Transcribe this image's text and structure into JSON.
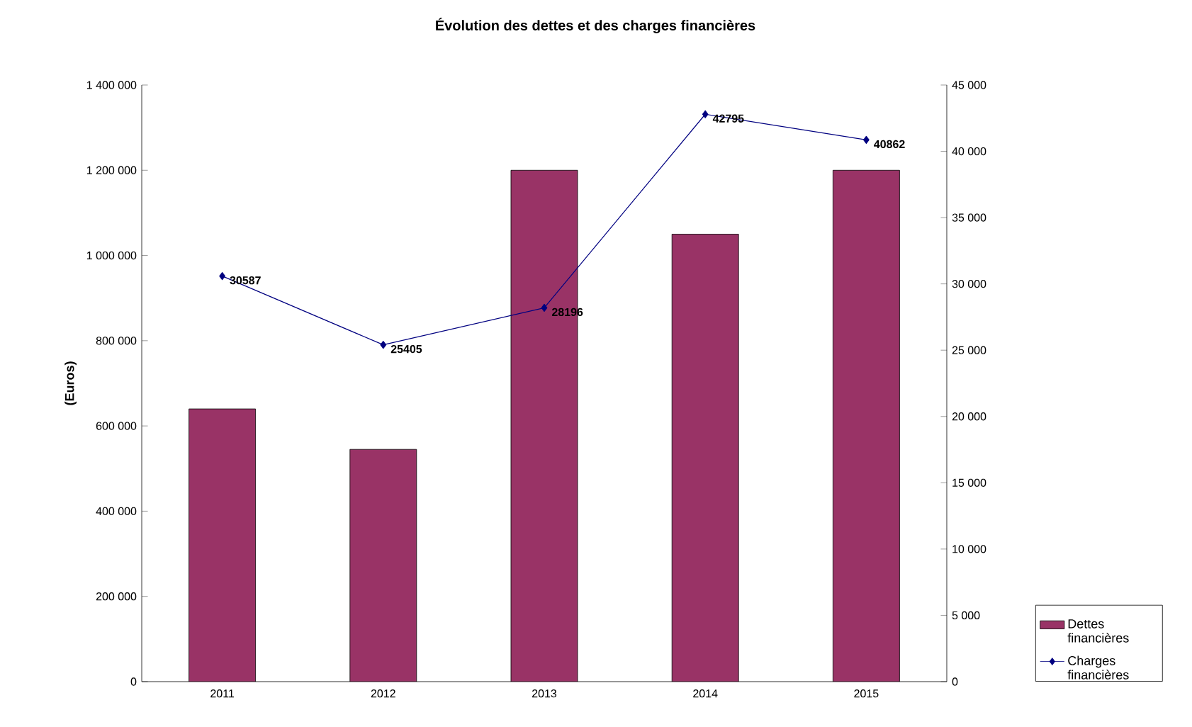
{
  "chart_data": {
    "type": "bar",
    "title": "Évolution des dettes et des charges financières",
    "ylabel": "(Euros)",
    "categories": [
      "2011",
      "2012",
      "2013",
      "2014",
      "2015"
    ],
    "series": [
      {
        "name": "Dettes financières",
        "color": "#993366",
        "values": [
          640000,
          545000,
          1200000,
          1050000,
          1200000
        ]
      },
      {
        "name": "Charges financières",
        "type": "line",
        "axis": "y2",
        "color": "#000080",
        "marker": "diamond",
        "values": [
          30587,
          25405,
          28196,
          42795,
          40862
        ],
        "value_labels": [
          "30587",
          "25405",
          "28196",
          "42795",
          "40862"
        ]
      }
    ],
    "ylim": [
      0,
      1400000
    ],
    "yticks": [
      {
        "value": 0,
        "label": "0"
      },
      {
        "value": 200000,
        "label": "200 000"
      },
      {
        "value": 400000,
        "label": "400 000"
      },
      {
        "value": 600000,
        "label": "600 000"
      },
      {
        "value": 800000,
        "label": "800 000"
      },
      {
        "value": 1000000,
        "label": "1 000 000"
      },
      {
        "value": 1200000,
        "label": "1 200 000"
      },
      {
        "value": 1400000,
        "label": "1 400 000"
      }
    ],
    "y2lim": [
      0,
      45000
    ],
    "y2ticks": [
      {
        "value": 0,
        "label": "0"
      },
      {
        "value": 5000,
        "label": "5 000"
      },
      {
        "value": 10000,
        "label": "10 000"
      },
      {
        "value": 15000,
        "label": "15 000"
      },
      {
        "value": 20000,
        "label": "20 000"
      },
      {
        "value": 25000,
        "label": "25 000"
      },
      {
        "value": 30000,
        "label": "30 000"
      },
      {
        "value": 35000,
        "label": "35 000"
      },
      {
        "value": 40000,
        "label": "40 000"
      },
      {
        "value": 45000,
        "label": "45 000"
      }
    ],
    "legend": "right"
  }
}
